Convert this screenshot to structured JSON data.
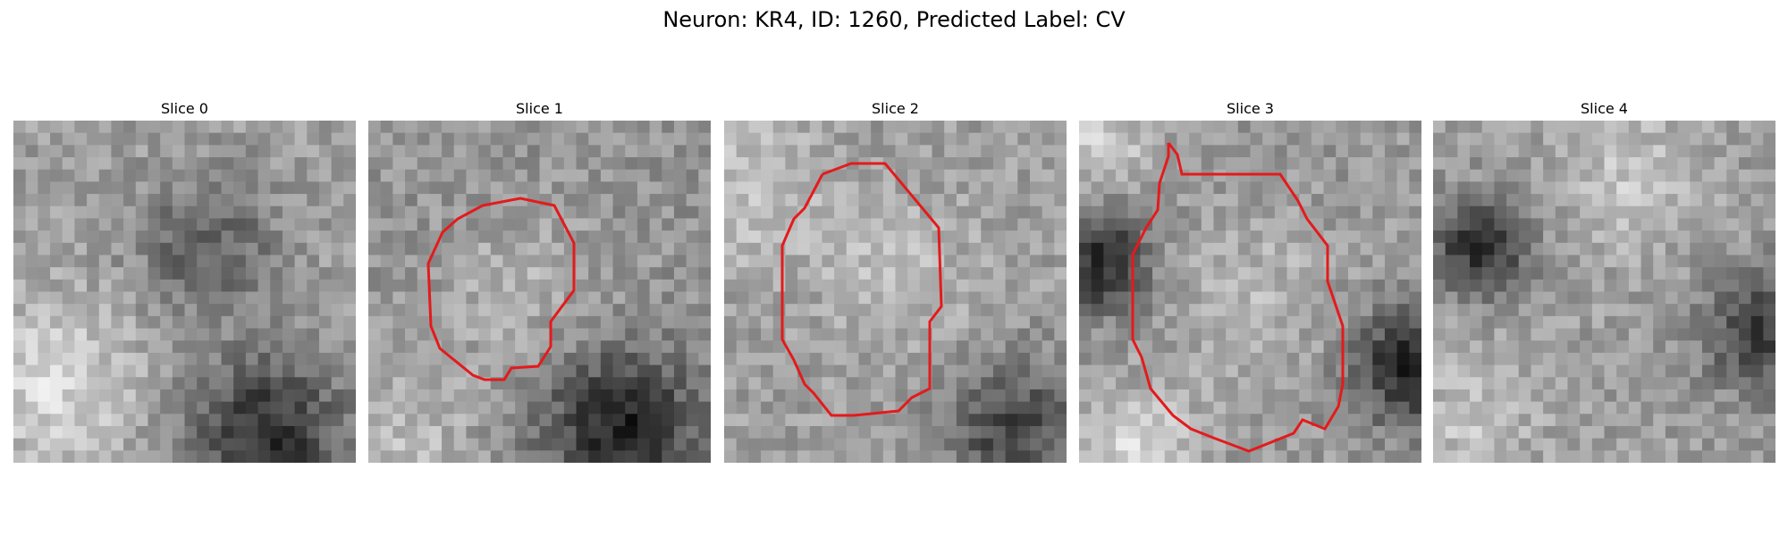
{
  "figure": {
    "title": "Neuron: KR4, ID: 1260, Predicted Label: CV"
  },
  "contour_color": "#e41a1c",
  "panels": [
    {
      "title": "Slice 0",
      "has_contour": false
    },
    {
      "title": "Slice 1",
      "has_contour": true
    },
    {
      "title": "Slice 2",
      "has_contour": true
    },
    {
      "title": "Slice 3",
      "has_contour": true
    },
    {
      "title": "Slice 4",
      "has_contour": false
    }
  ]
}
